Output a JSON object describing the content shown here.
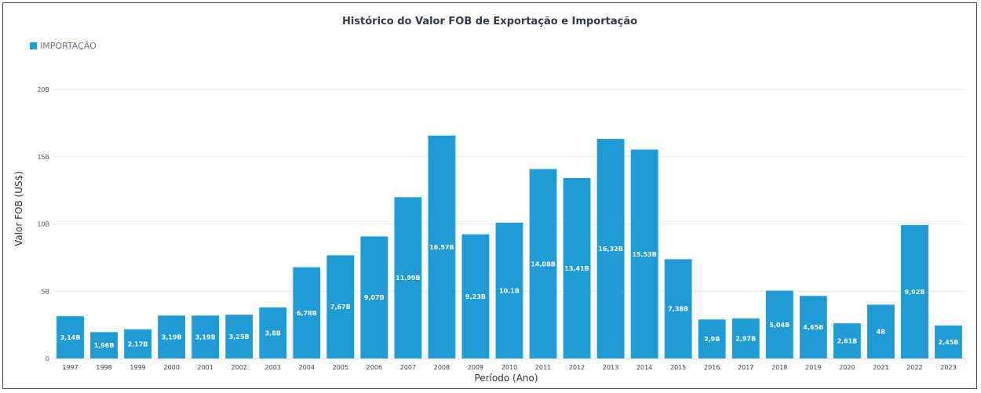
{
  "chart_data": {
    "type": "bar",
    "title": "Histórico do Valor FOB de Exportação e Importação",
    "xlabel": "Período (Ano)",
    "ylabel": "Valor FOB (US$)",
    "ylim": [
      0,
      20
    ],
    "yticks": [
      {
        "value": 0,
        "label": "0"
      },
      {
        "value": 5,
        "label": "5B"
      },
      {
        "value": 10,
        "label": "10B"
      },
      {
        "value": 15,
        "label": "15B"
      },
      {
        "value": 20,
        "label": "20B"
      }
    ],
    "grid": true,
    "legend_position": "top-left",
    "categories": [
      "1997",
      "1998",
      "1999",
      "2000",
      "2001",
      "2002",
      "2003",
      "2004",
      "2005",
      "2006",
      "2007",
      "2008",
      "2009",
      "2010",
      "2011",
      "2012",
      "2013",
      "2014",
      "2015",
      "2016",
      "2017",
      "2018",
      "2019",
      "2020",
      "2021",
      "2022",
      "2023"
    ],
    "series": [
      {
        "name": "IMPORTAÇÃO",
        "color": "#1f9bd7",
        "values": [
          3.14,
          1.96,
          2.17,
          3.19,
          3.19,
          3.25,
          3.8,
          6.78,
          7.67,
          9.07,
          11.99,
          16.57,
          9.23,
          10.1,
          14.08,
          13.41,
          16.32,
          15.53,
          7.38,
          2.9,
          2.97,
          5.04,
          4.65,
          2.61,
          4,
          9.92,
          2.45
        ],
        "data_labels": [
          "3,14B",
          "1,96B",
          "2,17B",
          "3,19B",
          "3,19B",
          "3,25B",
          "3,8B",
          "6,78B",
          "7,67B",
          "9,07B",
          "11,99B",
          "16,57B",
          "9,23B",
          "10,1B",
          "14,08B",
          "13,41B",
          "16,32B",
          "15,53B",
          "7,38B",
          "2,9B",
          "2,97B",
          "5,04B",
          "4,65B",
          "2,61B",
          "4B",
          "9,92B",
          "2,45B"
        ]
      }
    ]
  }
}
